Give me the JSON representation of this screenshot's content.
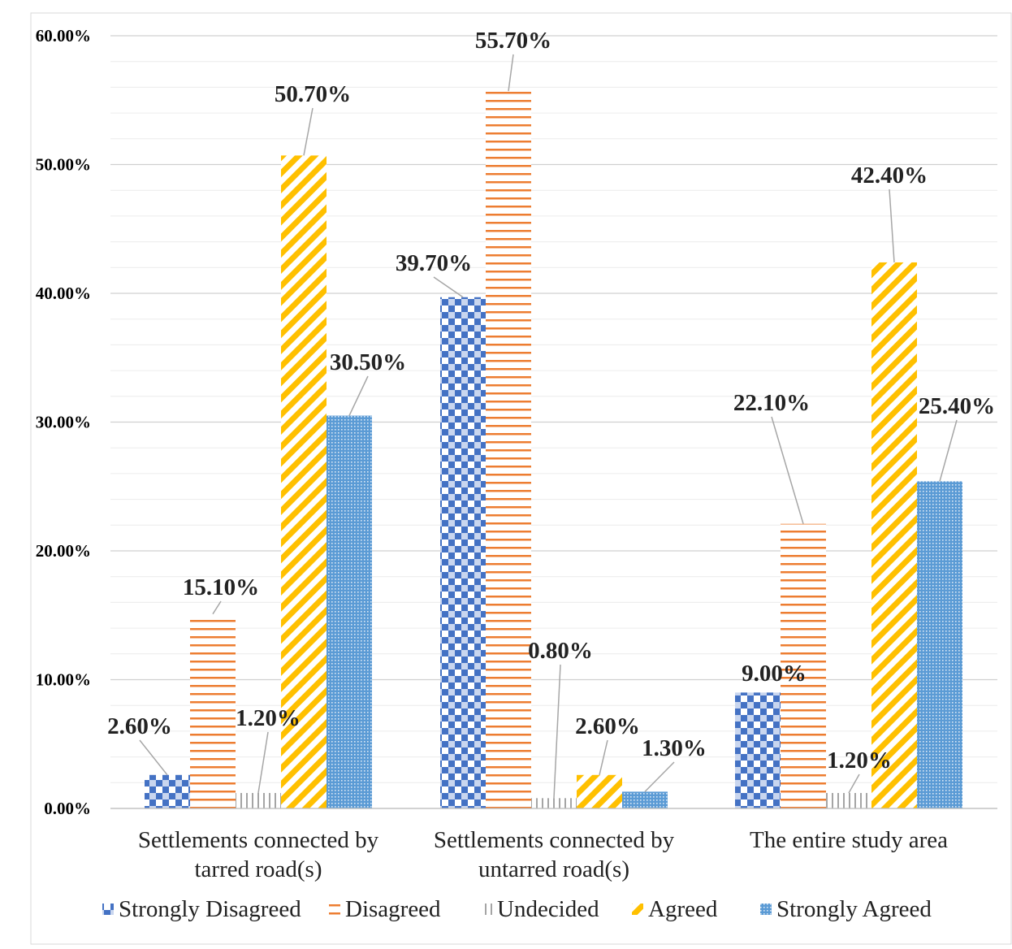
{
  "chart_data": {
    "type": "bar",
    "title": "",
    "xlabel": "",
    "ylabel": "",
    "ylim": [
      0,
      0.6
    ],
    "yticks": [
      "0.00%",
      "10.00%",
      "20.00%",
      "30.00%",
      "40.00%",
      "50.00%",
      "60.00%"
    ],
    "grid": true,
    "legend_position": "bottom",
    "categories": [
      [
        "Settlements connected by",
        "tarred road(s)"
      ],
      [
        "Settlements connected by",
        "untarred road(s)"
      ],
      [
        "The entire study area"
      ]
    ],
    "series": [
      {
        "name": "Strongly Disagreed",
        "color": "#4472c4",
        "pattern": "checker",
        "values": [
          0.026,
          0.397,
          0.09
        ],
        "labels": [
          "2.60%",
          "39.70%",
          "9.00%"
        ]
      },
      {
        "name": "Disagreed",
        "color": "#ed7d31",
        "pattern": "hlines",
        "values": [
          0.151,
          0.557,
          0.221
        ],
        "labels": [
          "15.10%",
          "55.70%",
          "22.10%"
        ]
      },
      {
        "name": "Undecided",
        "color": "#a5a5a5",
        "pattern": "vlines",
        "values": [
          0.012,
          0.008,
          0.012
        ],
        "labels": [
          "1.20%",
          "0.80%",
          "1.20%"
        ]
      },
      {
        "name": "Agreed",
        "color": "#ffc000",
        "pattern": "diag",
        "values": [
          0.507,
          0.026,
          0.424
        ],
        "labels": [
          "50.70%",
          "2.60%",
          "42.40%"
        ]
      },
      {
        "name": "Strongly Agreed",
        "color": "#5b9bd5",
        "pattern": "dots",
        "values": [
          0.305,
          0.013,
          0.254
        ],
        "labels": [
          "30.50%",
          "1.30%",
          "25.40%"
        ]
      }
    ]
  }
}
